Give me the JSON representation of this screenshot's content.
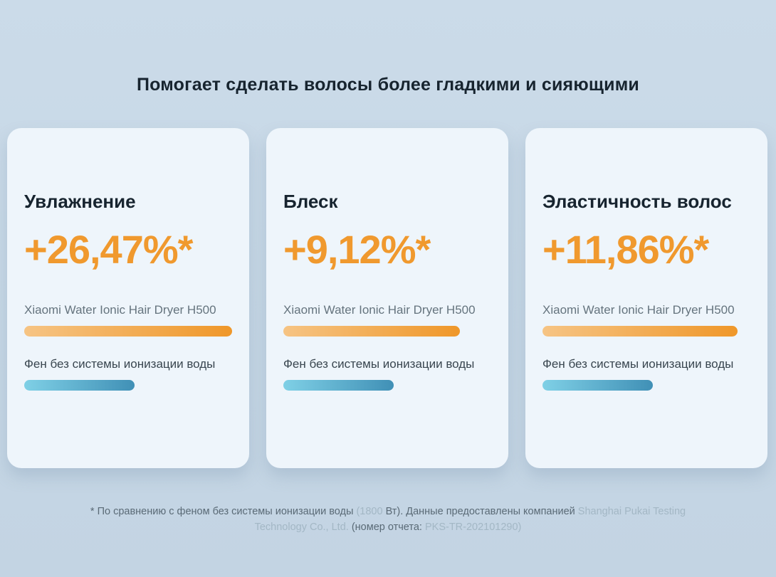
{
  "title": "Помогает сделать волосы более гладкими и сияющими",
  "cards": [
    {
      "heading": "Увлажнение",
      "value": "+26,47%*",
      "bars": [
        {
          "label": "Xiaomi Water Ionic Hair Dryer H500",
          "width_pct": 100
        },
        {
          "label": "Фен без системы ионизации воды",
          "width_pct": 53
        }
      ]
    },
    {
      "heading": "Блеск",
      "value": "+9,12%*",
      "bars": [
        {
          "label": "Xiaomi Water Ionic Hair Dryer H500",
          "width_pct": 85
        },
        {
          "label": "Фен без системы ионизации воды",
          "width_pct": 53
        }
      ]
    },
    {
      "heading": "Эластичность волос",
      "value": "+11,86%*",
      "bars": [
        {
          "label": "Xiaomi Water Ionic Hair Dryer H500",
          "width_pct": 94
        },
        {
          "label": "Фен без системы ионизации воды",
          "width_pct": 53
        }
      ]
    }
  ],
  "footnote": {
    "seg1": "* По сравнению с феном без системы ионизации воды ",
    "seg2": "(1800 ",
    "seg3": "Вт). Данные предоставлены компанией ",
    "seg4": "Shanghai Pukai Testing Technology Co., Ltd.",
    "seg5": " (номер отчета: ",
    "seg6": "PKS-TR-202101290)"
  },
  "colors": {
    "page_background": "#c8d8e6",
    "card_background": "#eef5fb",
    "heading_text": "#17242f",
    "value_accent": "#f0992e",
    "orange_bar_gradient_start": "#f6c484",
    "orange_bar_gradient_end": "#ef9729",
    "blue_bar_gradient_start": "#7fd0e6",
    "blue_bar_gradient_end": "#4090b6",
    "label_latin": "#65747e",
    "label_cyrillic": "#39464f",
    "footnote_text": "#5a6a76",
    "footnote_muted": "#a3b7c5"
  },
  "chart_data": [
    {
      "type": "bar",
      "orientation": "horizontal",
      "title": "Увлажнение",
      "data_label": "+26,47%*",
      "improvement_pct": 26.47,
      "categories": [
        "Xiaomi Water Ionic Hair Dryer H500",
        "Фен без системы ионизации воды"
      ],
      "bar_length_pct_of_track": [
        100,
        53
      ],
      "series_colors": [
        "orange-gradient",
        "blue-gradient"
      ],
      "axis": "none"
    },
    {
      "type": "bar",
      "orientation": "horizontal",
      "title": "Блеск",
      "data_label": "+9,12%*",
      "improvement_pct": 9.12,
      "categories": [
        "Xiaomi Water Ionic Hair Dryer H500",
        "Фен без системы ионизации воды"
      ],
      "bar_length_pct_of_track": [
        85,
        53
      ],
      "series_colors": [
        "orange-gradient",
        "blue-gradient"
      ],
      "axis": "none"
    },
    {
      "type": "bar",
      "orientation": "horizontal",
      "title": "Эластичность волос",
      "data_label": "+11,86%*",
      "improvement_pct": 11.86,
      "categories": [
        "Xiaomi Water Ionic Hair Dryer H500",
        "Фен без системы ионизации воды"
      ],
      "bar_length_pct_of_track": [
        94,
        53
      ],
      "series_colors": [
        "orange-gradient",
        "blue-gradient"
      ],
      "axis": "none"
    }
  ]
}
